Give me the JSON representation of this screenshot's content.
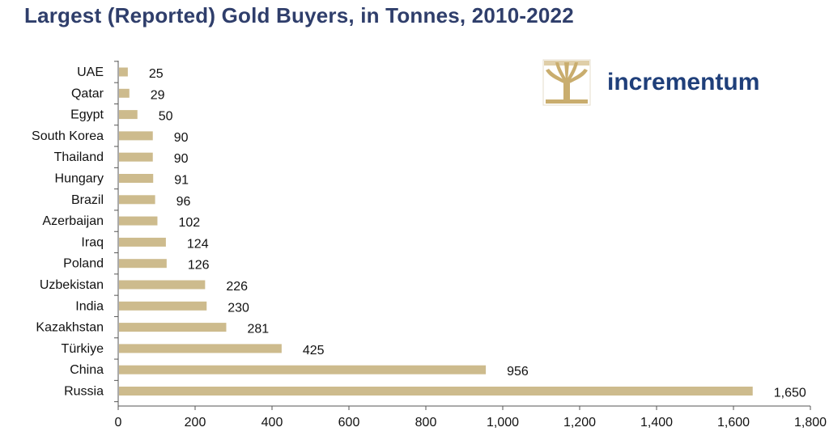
{
  "colors": {
    "bar": "#cdbb8d",
    "title": "#2f3e6b",
    "logo_text": "#1f3f7a",
    "logo_gold": "#c9ad6e"
  },
  "logo": {
    "text": "incrementum",
    "icon": "tree-icon"
  },
  "chart_data": {
    "type": "bar",
    "orientation": "horizontal",
    "title": "Largest (Reported) Gold Buyers, in Tonnes, 2010-2022",
    "categories": [
      "UAE",
      "Qatar",
      "Egypt",
      "South Korea",
      "Thailand",
      "Hungary",
      "Brazil",
      "Azerbaijan",
      "Iraq",
      "Poland",
      "Uzbekistan",
      "India",
      "Kazakhstan",
      "Türkiye",
      "China",
      "Russia"
    ],
    "values": [
      25,
      29,
      50,
      90,
      90,
      91,
      96,
      102,
      124,
      126,
      226,
      230,
      281,
      425,
      956,
      1650
    ],
    "data_labels": [
      "25",
      "29",
      "50",
      "90",
      "90",
      "91",
      "96",
      "102",
      "124",
      "126",
      "226",
      "230",
      "281",
      "425",
      "956",
      "1,650"
    ],
    "xlim": [
      0,
      1800
    ],
    "xticks": [
      0,
      200,
      400,
      600,
      800,
      1000,
      1200,
      1400,
      1600,
      1800
    ],
    "xtick_labels": [
      "0",
      "200",
      "400",
      "600",
      "800",
      "1,000",
      "1,200",
      "1,400",
      "1,600",
      "1,800"
    ],
    "xlabel": "",
    "ylabel": "",
    "grid": false,
    "legend": false
  }
}
